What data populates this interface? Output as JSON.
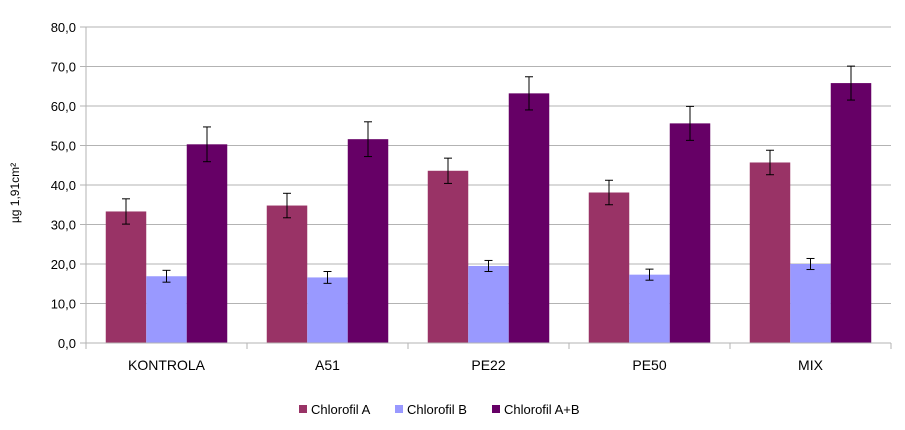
{
  "chart_data": {
    "type": "bar",
    "ylabel": "µg 1,91cm²",
    "ylim": [
      0,
      80
    ],
    "yticks": [
      "0,0",
      "10,0",
      "20,0",
      "30,0",
      "40,0",
      "50,0",
      "60,0",
      "70,0",
      "80,0"
    ],
    "grid": true,
    "legend_position": "bottom",
    "categories": [
      "KONTROLA",
      "A51",
      "PE22",
      "PE50",
      "MIX"
    ],
    "series": [
      {
        "name": "Chlorofil A",
        "color": "#993366",
        "values": [
          33.3,
          34.8,
          43.6,
          38.1,
          45.7
        ],
        "errors": [
          3.2,
          3.1,
          3.2,
          3.1,
          3.1
        ]
      },
      {
        "name": "Chlorofil B",
        "color": "#9999FF",
        "values": [
          16.9,
          16.6,
          19.5,
          17.3,
          20.0
        ],
        "errors": [
          1.5,
          1.5,
          1.4,
          1.4,
          1.4
        ]
      },
      {
        "name": "Chlorofil A+B",
        "color": "#660066",
        "values": [
          50.3,
          51.6,
          63.2,
          55.6,
          65.8
        ],
        "errors": [
          4.4,
          4.4,
          4.2,
          4.3,
          4.3
        ]
      }
    ]
  }
}
